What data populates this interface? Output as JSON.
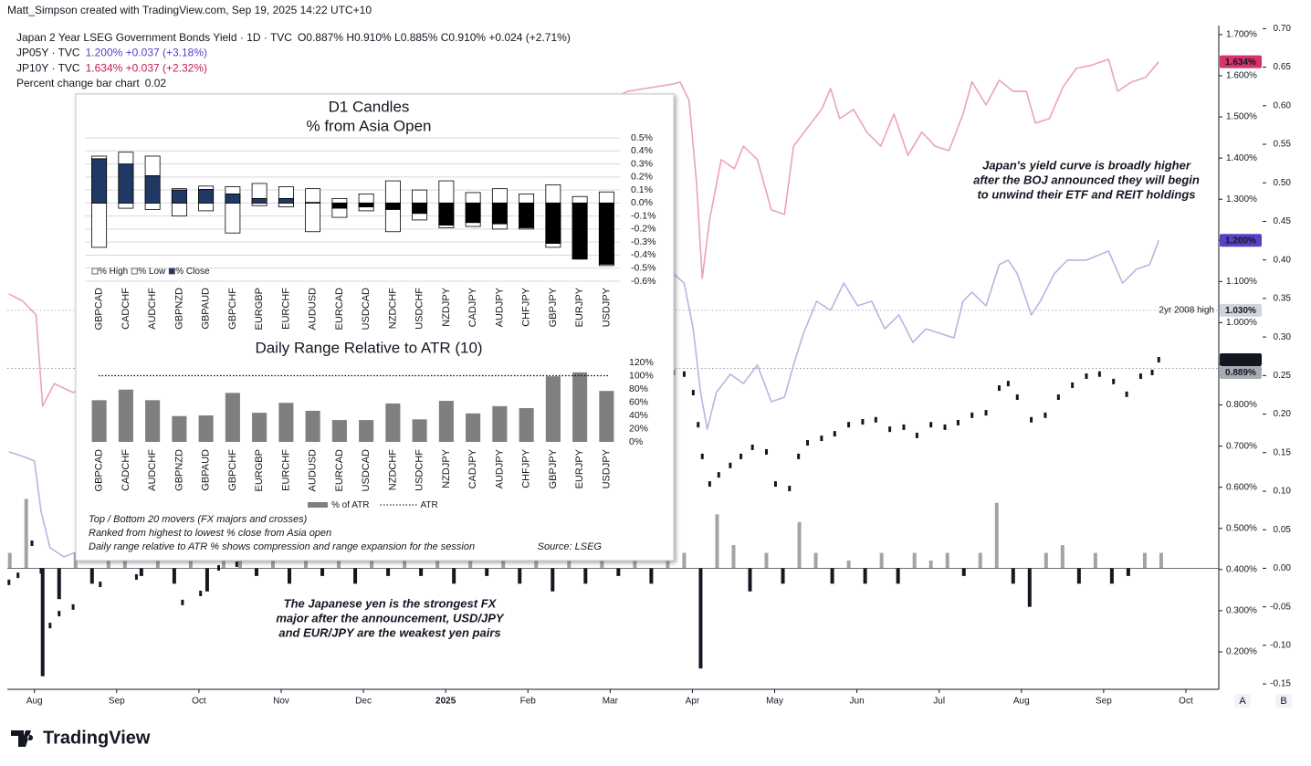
{
  "header": {
    "credit": "Matt_Simpson created with TradingView.com, Sep 19, 2025 14:22 UTC+10"
  },
  "footer": {
    "logo": "TradingView",
    "buttons": [
      "A",
      "B"
    ]
  },
  "chart_data": [
    {
      "type": "line",
      "xlim": [
        -0.33,
        14.4
      ],
      "ylim": [
        0.109,
        1.722
      ],
      "y2lim": [
        -0.157,
        0.704
      ],
      "xticks": [
        {
          "value": 0,
          "label": "Aug"
        },
        {
          "value": 1,
          "label": "Sep"
        },
        {
          "value": 2,
          "label": "Oct"
        },
        {
          "value": 3,
          "label": "Nov"
        },
        {
          "value": 4,
          "label": "Dec"
        },
        {
          "value": 5,
          "label": "2025"
        },
        {
          "value": 6,
          "label": "Feb"
        },
        {
          "value": 7,
          "label": "Mar"
        },
        {
          "value": 8,
          "label": "Apr"
        },
        {
          "value": 9,
          "label": "May"
        },
        {
          "value": 10,
          "label": "Jun"
        },
        {
          "value": 11,
          "label": "Jul"
        },
        {
          "value": 12,
          "label": "Aug"
        },
        {
          "value": 13,
          "label": "Sep"
        },
        {
          "value": 14,
          "label": "Oct"
        }
      ],
      "yticks": [
        {
          "value": 1.7,
          "label": "1.700%"
        },
        {
          "value": 1.6,
          "label": "1.600%"
        },
        {
          "value": 1.5,
          "label": "1.500%"
        },
        {
          "value": 1.4,
          "label": "1.400%"
        },
        {
          "value": 1.3,
          "label": "1.300%"
        },
        {
          "value": 1.2,
          "label": "1.200%"
        },
        {
          "value": 1.1,
          "label": "1.100%"
        },
        {
          "value": 1.0,
          "label": "1.000%"
        },
        {
          "value": 0.9,
          "label": "0.900%"
        },
        {
          "value": 0.8,
          "label": "0.800%"
        },
        {
          "value": 0.7,
          "label": "0.700%"
        },
        {
          "value": 0.6,
          "label": "0.600%"
        },
        {
          "value": 0.5,
          "label": "0.500%"
        },
        {
          "value": 0.4,
          "label": "0.400%"
        },
        {
          "value": 0.3,
          "label": "0.300%"
        },
        {
          "value": 0.2,
          "label": "0.200%"
        }
      ],
      "y2ticks": [
        {
          "value": 0.7,
          "label": "0.70"
        },
        {
          "value": 0.65,
          "label": "0.65"
        },
        {
          "value": 0.6,
          "label": "0.60"
        },
        {
          "value": 0.55,
          "label": "0.55"
        },
        {
          "value": 0.5,
          "label": "0.50"
        },
        {
          "value": 0.45,
          "label": "0.45"
        },
        {
          "value": 0.4,
          "label": "0.40"
        },
        {
          "value": 0.35,
          "label": "0.35"
        },
        {
          "value": 0.3,
          "label": "0.30"
        },
        {
          "value": 0.25,
          "label": "0.25"
        },
        {
          "value": 0.2,
          "label": "0.20"
        },
        {
          "value": 0.15,
          "label": "0.15"
        },
        {
          "value": 0.1,
          "label": "0.10"
        },
        {
          "value": 0.05,
          "label": "0.05"
        },
        {
          "value": 0,
          "label": "0.00"
        },
        {
          "value": -0.05,
          "label": "-0.05"
        },
        {
          "value": -0.1,
          "label": "-0.10"
        },
        {
          "value": -0.15,
          "label": "-0.15"
        }
      ],
      "series": [
        {
          "name": "Japan 2 Year LSEG Government Bonds Yield · 1D · TVC",
          "legend": "O0.887%  H0.910%  L0.885%  C0.910%  +0.024 (+2.71%)",
          "style": "markers",
          "color": "#131722",
          "legend_color": "#131722",
          "last_label": "0.910%",
          "label_color": "#131722",
          "x": [
            -0.31,
            -0.2,
            -0.03,
            0.08,
            0.19,
            0.3,
            0.47,
            0.8,
            1.24,
            1.8,
            2.02,
            2.24,
            2.46,
            7.77,
            7.9,
            8.01,
            8.07,
            8.12,
            8.21,
            8.32,
            8.46,
            8.59,
            8.73,
            8.9,
            9.01,
            9.18,
            9.29,
            9.4,
            9.57,
            9.73,
            9.9,
            10.07,
            10.23,
            10.4,
            10.57,
            10.73,
            10.9,
            11.07,
            11.23,
            11.4,
            11.57,
            11.73,
            11.84,
            11.95,
            12.12,
            12.29,
            12.45,
            12.62,
            12.79,
            12.95,
            13.12,
            13.28,
            13.45,
            13.59,
            13.67
          ],
          "values": [
            0.369,
            0.386,
            0.464,
            0.397,
            0.264,
            0.293,
            0.309,
            0.364,
            0.382,
            0.32,
            0.342,
            0.404,
            0.413,
            0.879,
            0.875,
            0.83,
            0.752,
            0.675,
            0.608,
            0.63,
            0.653,
            0.675,
            0.697,
            0.686,
            0.608,
            0.597,
            0.675,
            0.708,
            0.719,
            0.73,
            0.752,
            0.759,
            0.764,
            0.741,
            0.746,
            0.726,
            0.752,
            0.746,
            0.757,
            0.775,
            0.781,
            0.841,
            0.852,
            0.819,
            0.764,
            0.775,
            0.819,
            0.848,
            0.87,
            0.875,
            0.857,
            0.826,
            0.87,
            0.879,
            0.91
          ]
        },
        {
          "name": "JP05Y · TVC",
          "legend": "1.200%  +0.037 (+3.18%)",
          "style": "line",
          "color": "#b8b4e2",
          "legend_color": "#5b3fc4",
          "last_label": "1.200%",
          "label_color": "#5b3fc4",
          "x": [
            -0.31,
            -0.14,
            0.0,
            0.08,
            0.19,
            0.36,
            0.5,
            7.77,
            7.9,
            8.01,
            8.1,
            8.18,
            8.29,
            8.46,
            8.62,
            8.79,
            8.96,
            9.12,
            9.23,
            9.35,
            9.51,
            9.68,
            9.84,
            10.01,
            10.18,
            10.34,
            10.51,
            10.68,
            10.84,
            11.01,
            11.18,
            11.29,
            11.4,
            11.57,
            11.73,
            11.84,
            11.95,
            12.12,
            12.23,
            12.4,
            12.56,
            12.79,
            13.06,
            13.23,
            13.4,
            13.56,
            13.67
          ],
          "values": [
            0.686,
            0.675,
            0.664,
            0.542,
            0.453,
            0.431,
            0.442,
            1.119,
            1.096,
            0.985,
            0.83,
            0.741,
            0.83,
            0.875,
            0.852,
            0.897,
            0.808,
            0.819,
            0.897,
            0.974,
            1.052,
            1.03,
            1.096,
            1.041,
            1.052,
            0.985,
            1.019,
            0.952,
            0.985,
            0.974,
            0.963,
            1.052,
            1.074,
            1.041,
            1.141,
            1.152,
            1.119,
            1.019,
            1.052,
            1.119,
            1.152,
            1.152,
            1.174,
            1.096,
            1.13,
            1.141,
            1.2
          ]
        },
        {
          "name": "JP10Y · TVC",
          "legend": "1.634%  +0.037 (+2.32%)",
          "style": "line",
          "color": "#eaa3b9",
          "legend_color": "#c2185b",
          "last_label": "1.634%",
          "label_color": "#d6336c",
          "x": [
            -0.31,
            -0.14,
            0.02,
            0.1,
            0.24,
            0.47,
            7.21,
            7.77,
            7.85,
            7.96,
            8.05,
            8.12,
            8.21,
            8.35,
            8.51,
            8.62,
            8.79,
            8.96,
            9.12,
            9.23,
            9.4,
            9.57,
            9.68,
            9.79,
            9.96,
            10.12,
            10.29,
            10.45,
            10.62,
            10.79,
            10.95,
            11.12,
            11.29,
            11.4,
            11.57,
            11.73,
            11.9,
            12.06,
            12.17,
            12.34,
            12.51,
            12.67,
            12.84,
            13.06,
            13.17,
            13.34,
            13.51,
            13.67
          ],
          "values": [
            1.07,
            1.052,
            1.019,
            0.797,
            0.852,
            0.83,
            1.562,
            1.58,
            1.585,
            1.54,
            1.341,
            1.108,
            1.252,
            1.396,
            1.374,
            1.429,
            1.396,
            1.274,
            1.263,
            1.429,
            1.474,
            1.518,
            1.569,
            1.496,
            1.518,
            1.463,
            1.429,
            1.507,
            1.407,
            1.463,
            1.429,
            1.418,
            1.507,
            1.585,
            1.529,
            1.589,
            1.562,
            1.562,
            1.485,
            1.496,
            1.574,
            1.618,
            1.625,
            1.64,
            1.562,
            1.585,
            1.596,
            1.634
          ]
        },
        {
          "name": "Percent change bar chart",
          "legend": "0.02",
          "style": "bars",
          "axis": "y2",
          "color": "#a3a3a3",
          "negative_color": "#131722",
          "legend_color": "#131722",
          "x": [
            -0.3,
            -0.1,
            0.1,
            0.3,
            0.5,
            0.7,
            0.9,
            1.1,
            1.3,
            1.5,
            1.7,
            1.9,
            2.1,
            2.3,
            2.5,
            2.7,
            2.9,
            3.1,
            3.3,
            3.5,
            3.7,
            3.9,
            4.1,
            4.3,
            4.5,
            4.7,
            4.9,
            5.1,
            5.3,
            5.5,
            5.7,
            5.9,
            6.1,
            6.3,
            6.5,
            6.7,
            6.9,
            7.1,
            7.3,
            7.5,
            7.7,
            7.9,
            8.1,
            8.3,
            8.5,
            8.7,
            8.9,
            9.1,
            9.3,
            9.5,
            9.7,
            9.9,
            10.1,
            10.3,
            10.5,
            10.7,
            10.9,
            11.1,
            11.3,
            11.5,
            11.7,
            11.9,
            12.1,
            12.3,
            12.5,
            12.7,
            12.9,
            13.1,
            13.3,
            13.5,
            13.7
          ],
          "values": [
            0.02,
            0.09,
            -0.14,
            -0.04,
            0.02,
            -0.02,
            0.01,
            0.02,
            -0.01,
            0.01,
            -0.02,
            0.01,
            -0.03,
            0.02,
            0.01,
            -0.01,
            0.01,
            -0.02,
            0.01,
            -0.01,
            0.01,
            -0.02,
            0.01,
            -0.01,
            0.01,
            -0.01,
            0.01,
            -0.02,
            0.01,
            -0.01,
            0.01,
            -0.02,
            0.01,
            -0.03,
            0.01,
            -0.02,
            0.01,
            -0.01,
            0.01,
            -0.02,
            0.01,
            0.02,
            -0.13,
            0.07,
            0.03,
            -0.03,
            0.02,
            -0.02,
            0.06,
            0.02,
            -0.02,
            0.01,
            -0.02,
            0.02,
            -0.02,
            0.02,
            0.01,
            0.02,
            -0.01,
            0.02,
            0.085,
            -0.02,
            -0.05,
            0.02,
            0.03,
            -0.02,
            0.02,
            -0.02,
            -0.01,
            0.02,
            0.02
          ]
        }
      ],
      "levels": [
        {
          "value": 1.03,
          "label": "1.030%",
          "note": "2yr 2008 high",
          "color": "#b2b5be",
          "label_color": "#d1d4dc"
        },
        {
          "value": 0.889,
          "label": "0.889%",
          "color": "#9598a1",
          "label_color": "#a9abb3"
        }
      ],
      "annotations": [
        [
          "Japan's yield curve is broadly higher",
          "after the BOJ announced they will begin",
          "to unwind their ETF and REIT holdings"
        ],
        [
          "The Japanese yen is the strongest FX",
          "major after the announcement, USD/JPY",
          "and EUR/JPY are the weakest yen pairs"
        ]
      ]
    },
    {
      "type": "range_bar",
      "title": "D1 Candles",
      "subtitle": "% from Asia Open",
      "categories": [
        "GBPCAD",
        "CADCHF",
        "AUDCHF",
        "GBPNZD",
        "GBPAUD",
        "GBPCHF",
        "EURGBP",
        "EURCHF",
        "AUDUSD",
        "EURCAD",
        "USDCAD",
        "NZDCHF",
        "USDCHF",
        "NZDJPY",
        "CADJPY",
        "AUDJPY",
        "CHFJPY",
        "GBPJPY",
        "EURJPY",
        "USDJPY"
      ],
      "series": [
        {
          "name": "% High",
          "color": "#ffffff",
          "values": [
            0.36,
            0.39,
            0.36,
            0.11,
            0.13,
            0.125,
            0.15,
            0.125,
            0.11,
            0.035,
            0.07,
            0.17,
            0.1,
            0.17,
            0.08,
            0.11,
            0.07,
            0.14,
            0.05,
            0.085
          ]
        },
        {
          "name": "% Low",
          "color": "#ffffff",
          "values": [
            -0.34,
            -0.04,
            -0.05,
            -0.1,
            -0.06,
            -0.23,
            -0.02,
            -0.03,
            -0.22,
            -0.11,
            -0.06,
            -0.22,
            -0.13,
            -0.19,
            -0.18,
            -0.2,
            -0.2,
            -0.34,
            -0.43,
            -0.48
          ]
        },
        {
          "name": "% Close",
          "color": "#203864",
          "negative_color": "#000000",
          "values": [
            0.34,
            0.3,
            0.21,
            0.1,
            0.105,
            0.07,
            0.035,
            0.035,
            0.005,
            -0.04,
            -0.03,
            -0.05,
            -0.08,
            -0.17,
            -0.15,
            -0.16,
            -0.19,
            -0.31,
            -0.43,
            -0.47
          ]
        }
      ],
      "ylim": [
        -0.6,
        0.5
      ],
      "yticks": [
        {
          "value": 0.5,
          "label": "0.5%"
        },
        {
          "value": 0.4,
          "label": "0.4%"
        },
        {
          "value": 0.3,
          "label": "0.3%"
        },
        {
          "value": 0.2,
          "label": "0.2%"
        },
        {
          "value": 0.1,
          "label": "0.1%"
        },
        {
          "value": 0,
          "label": "0.0%"
        },
        {
          "value": -0.1,
          "label": "-0.1%"
        },
        {
          "value": -0.2,
          "label": "-0.2%"
        },
        {
          "value": -0.3,
          "label": "-0.3%"
        },
        {
          "value": -0.4,
          "label": "-0.4%"
        },
        {
          "value": -0.5,
          "label": "-0.5%"
        },
        {
          "value": -0.6,
          "label": "-0.6%"
        }
      ],
      "grid": true
    },
    {
      "type": "bar",
      "title": "Daily Range Relative to ATR (10)",
      "categories": [
        "GBPCAD",
        "CADCHF",
        "AUDCHF",
        "GBPNZD",
        "GBPAUD",
        "GBPCHF",
        "EURGBP",
        "EURCHF",
        "AUDUSD",
        "EURCAD",
        "USDCAD",
        "NZDCHF",
        "USDCHF",
        "NZDJPY",
        "CADJPY",
        "AUDJPY",
        "CHFJPY",
        "GBPJPY",
        "EURJPY",
        "USDJPY"
      ],
      "series": [
        {
          "name": "% of ATR",
          "color": "#7f7f7f",
          "values": [
            63,
            79,
            63,
            39,
            40,
            74,
            44,
            59,
            47,
            33,
            33,
            58,
            34,
            62,
            43,
            54,
            51,
            99,
            105,
            77
          ]
        }
      ],
      "reference_line": {
        "name": "ATR",
        "value": 100
      },
      "ylim": [
        0,
        120
      ],
      "yticks": [
        {
          "value": 120,
          "label": "120%"
        },
        {
          "value": 100,
          "label": "100%"
        },
        {
          "value": 80,
          "label": "80%"
        },
        {
          "value": 60,
          "label": "60%"
        },
        {
          "value": 40,
          "label": "40%"
        },
        {
          "value": 20,
          "label": "20%"
        },
        {
          "value": 0,
          "label": "0%"
        }
      ],
      "grid": false,
      "notes": [
        "Top / Bottom 20 movers (FX majors and crosses)",
        "Ranked from highest to lowest % close from Asia open",
        "Daily range relative to ATR % shows compression and range expansion for the session"
      ],
      "source": "Source: LSEG"
    }
  ]
}
